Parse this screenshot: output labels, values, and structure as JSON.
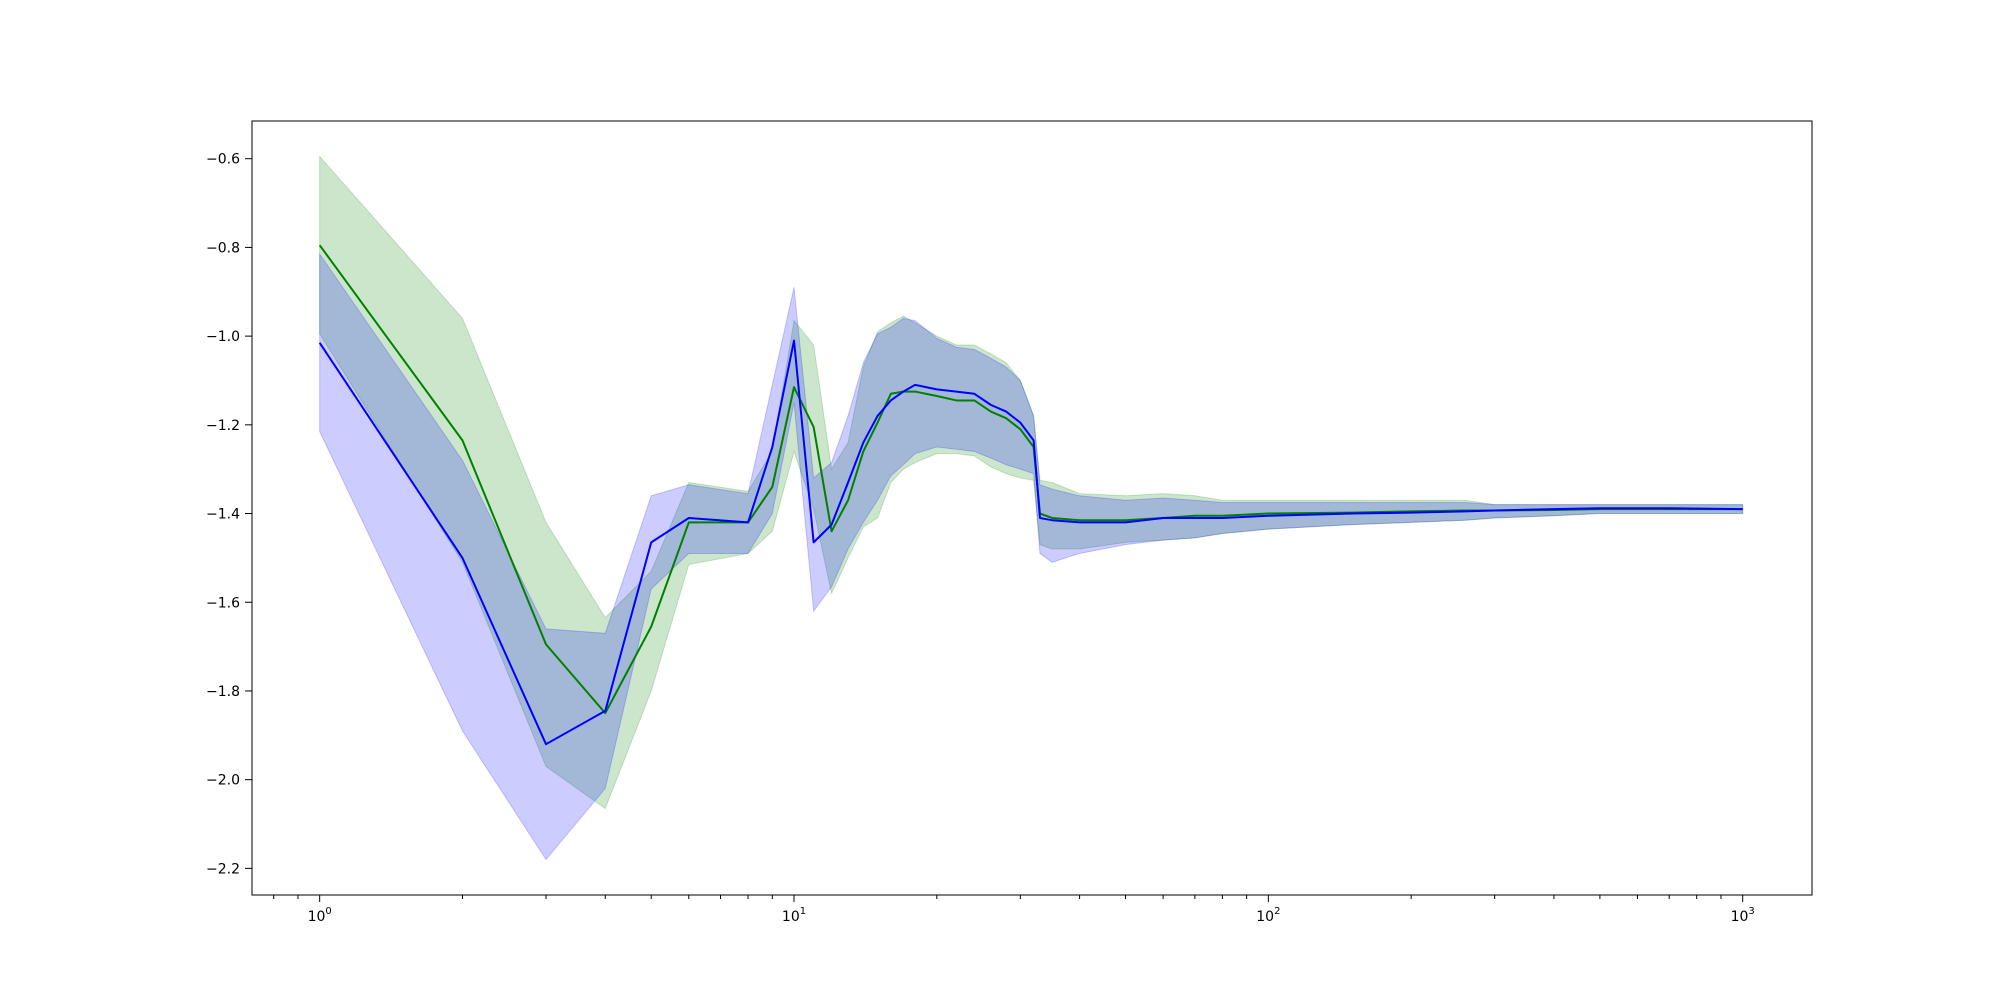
{
  "chart_data": {
    "type": "line",
    "title": "",
    "xlabel": "",
    "ylabel": "",
    "x_scale": "log",
    "xlim": [
      0.72,
      1400
    ],
    "ylim": [
      -2.26,
      -0.515
    ],
    "grid": false,
    "legend": "none",
    "x_ticks": [
      {
        "value": 1,
        "base": "10",
        "exp": "0"
      },
      {
        "value": 10,
        "base": "10",
        "exp": "1"
      },
      {
        "value": 100,
        "base": "10",
        "exp": "2"
      },
      {
        "value": 1000,
        "base": "10",
        "exp": "3"
      }
    ],
    "y_ticks": [
      {
        "value": -0.6,
        "label": "−0.6"
      },
      {
        "value": -0.8,
        "label": "−0.8"
      },
      {
        "value": -1.0,
        "label": "−1.0"
      },
      {
        "value": -1.2,
        "label": "−1.2"
      },
      {
        "value": -1.4,
        "label": "−1.4"
      },
      {
        "value": -1.6,
        "label": "−1.6"
      },
      {
        "value": -1.8,
        "label": "−1.8"
      },
      {
        "value": -2.0,
        "label": "−2.0"
      },
      {
        "value": -2.2,
        "label": "−2.2"
      }
    ],
    "series": [
      {
        "color": "#008000",
        "band_color": "#008000",
        "band_opacity": 0.2,
        "x": [
          1,
          2,
          3,
          4,
          5,
          6,
          8,
          9,
          10,
          11,
          12,
          13,
          14,
          15,
          16,
          17,
          18,
          20,
          22,
          24,
          26,
          28,
          30,
          32,
          33,
          35,
          40,
          50,
          60,
          70,
          80,
          100,
          150,
          200,
          260,
          300,
          400,
          500,
          700,
          1000
        ],
        "y": [
          -0.795,
          -1.235,
          -1.695,
          -1.85,
          -1.655,
          -1.42,
          -1.42,
          -1.34,
          -1.115,
          -1.205,
          -1.44,
          -1.37,
          -1.26,
          -1.195,
          -1.13,
          -1.125,
          -1.125,
          -1.135,
          -1.145,
          -1.145,
          -1.17,
          -1.185,
          -1.21,
          -1.25,
          -1.4,
          -1.41,
          -1.415,
          -1.415,
          -1.41,
          -1.405,
          -1.405,
          -1.4,
          -1.398,
          -1.395,
          -1.393,
          -1.393,
          -1.392,
          -1.39,
          -1.39,
          -1.39
        ],
        "upper": [
          -0.595,
          -0.96,
          -1.42,
          -1.635,
          -1.53,
          -1.33,
          -1.35,
          -1.26,
          -0.965,
          -1.02,
          -1.3,
          -1.24,
          -1.07,
          -0.99,
          -0.97,
          -0.955,
          -0.97,
          -1.0,
          -1.02,
          -1.02,
          -1.04,
          -1.06,
          -1.1,
          -1.18,
          -1.325,
          -1.33,
          -1.355,
          -1.36,
          -1.355,
          -1.36,
          -1.37,
          -1.37,
          -1.37,
          -1.37,
          -1.37,
          -1.38,
          -1.38,
          -1.38,
          -1.38,
          -1.38
        ],
        "lower": [
          -0.995,
          -1.51,
          -1.97,
          -2.065,
          -1.8,
          -1.515,
          -1.49,
          -1.44,
          -1.26,
          -1.39,
          -1.58,
          -1.5,
          -1.43,
          -1.41,
          -1.33,
          -1.3,
          -1.285,
          -1.265,
          -1.265,
          -1.27,
          -1.295,
          -1.31,
          -1.32,
          -1.325,
          -1.47,
          -1.48,
          -1.48,
          -1.465,
          -1.46,
          -1.455,
          -1.445,
          -1.435,
          -1.425,
          -1.42,
          -1.415,
          -1.41,
          -1.405,
          -1.4,
          -1.4,
          -1.4
        ]
      },
      {
        "color": "#0000ff",
        "band_color": "#0000ff",
        "band_opacity": 0.2,
        "x": [
          1,
          2,
          3,
          4,
          5,
          6,
          8,
          9,
          10,
          11,
          12,
          13,
          14,
          15,
          16,
          17,
          18,
          20,
          22,
          24,
          26,
          28,
          30,
          32,
          33,
          35,
          40,
          50,
          60,
          70,
          80,
          100,
          150,
          200,
          260,
          300,
          400,
          500,
          700,
          1000
        ],
        "y": [
          -1.015,
          -1.5,
          -1.92,
          -1.845,
          -1.465,
          -1.41,
          -1.42,
          -1.25,
          -1.01,
          -1.465,
          -1.425,
          -1.33,
          -1.24,
          -1.18,
          -1.145,
          -1.125,
          -1.11,
          -1.12,
          -1.125,
          -1.13,
          -1.155,
          -1.17,
          -1.195,
          -1.235,
          -1.41,
          -1.415,
          -1.42,
          -1.42,
          -1.41,
          -1.41,
          -1.41,
          -1.405,
          -1.4,
          -1.398,
          -1.395,
          -1.393,
          -1.39,
          -1.388,
          -1.388,
          -1.39
        ],
        "upper": [
          -0.815,
          -1.28,
          -1.66,
          -1.67,
          -1.36,
          -1.335,
          -1.355,
          -1.11,
          -0.89,
          -1.32,
          -1.285,
          -1.18,
          -1.06,
          -0.995,
          -0.98,
          -0.96,
          -0.965,
          -1.005,
          -1.025,
          -1.03,
          -1.05,
          -1.07,
          -1.1,
          -1.18,
          -1.335,
          -1.345,
          -1.36,
          -1.37,
          -1.365,
          -1.37,
          -1.375,
          -1.375,
          -1.375,
          -1.375,
          -1.375,
          -1.38,
          -1.38,
          -1.38,
          -1.38,
          -1.38
        ],
        "lower": [
          -1.215,
          -1.89,
          -2.18,
          -2.02,
          -1.57,
          -1.49,
          -1.49,
          -1.4,
          -1.15,
          -1.62,
          -1.565,
          -1.48,
          -1.42,
          -1.37,
          -1.315,
          -1.29,
          -1.265,
          -1.25,
          -1.255,
          -1.26,
          -1.275,
          -1.29,
          -1.3,
          -1.31,
          -1.49,
          -1.51,
          -1.49,
          -1.47,
          -1.46,
          -1.455,
          -1.445,
          -1.435,
          -1.425,
          -1.42,
          -1.415,
          -1.41,
          -1.405,
          -1.4,
          -1.4,
          -1.4
        ]
      }
    ]
  }
}
